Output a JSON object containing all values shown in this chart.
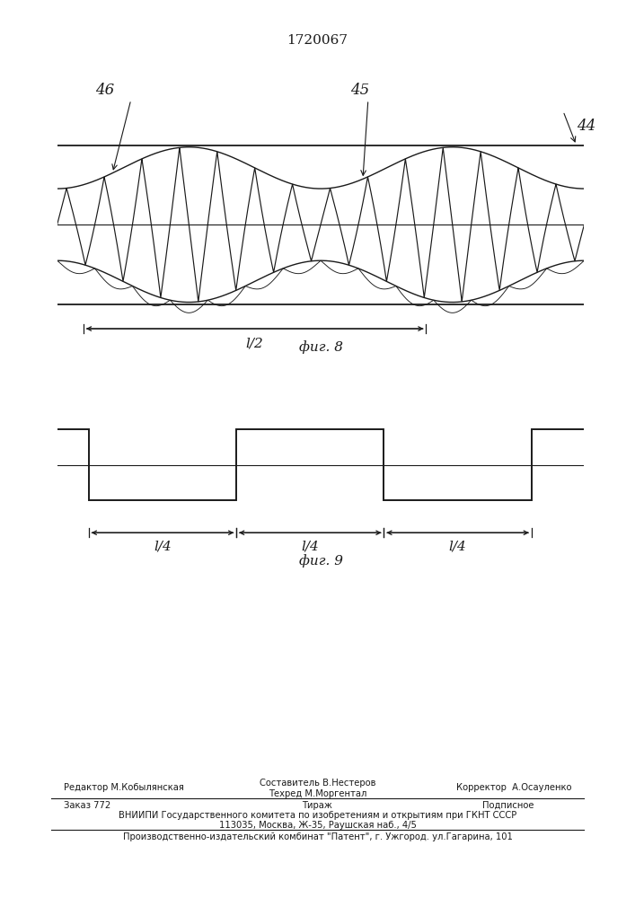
{
  "title": "1720067",
  "title_fontsize": 11,
  "fig8_label": "фиг. 8",
  "fig9_label": "фиг. 9",
  "label_44": "44",
  "label_45": "45",
  "label_46": "46",
  "dim_half": "l/2",
  "dim_quarter1": "l/4",
  "dim_quarter2": "l/4",
  "dim_quarter3": "l/4",
  "footer_line1_left": "Редактор М.Кобылянская",
  "footer_line1_center1": "Составитель В.Нестеров",
  "footer_line1_center2": "Техред М.Моргентал",
  "footer_line1_right": "Корректор  А.Осауленко",
  "footer_line2_left": "Заказ 772",
  "footer_line2_center": "Тираж",
  "footer_line2_right": "Подписное",
  "footer_line3": "ВНИИПИ Государственного комитета по изобретениям и открытиям при ГКНТ СССР",
  "footer_line4": "113035, Москва, Ж-35, Раушская наб., 4/5",
  "footer_line5": "Производственно-издательский комбинат \"Патент\", г. Ужгород. ул.Гагарина, 101",
  "line_color": "#1a1a1a",
  "text_color": "#1a1a1a"
}
